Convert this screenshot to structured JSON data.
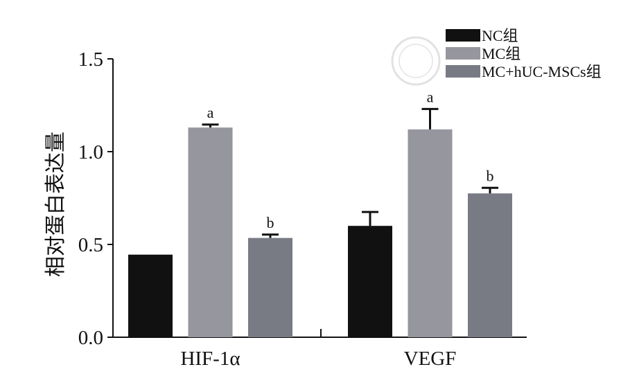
{
  "chart_data": {
    "type": "bar",
    "title": "",
    "xlabel": "",
    "ylabel": "相对蛋白表达量",
    "ylim": [
      0,
      1.5
    ],
    "yticks": [
      "0.0",
      "0.5",
      "1.0",
      "1.5"
    ],
    "ytick_values": [
      0,
      0.5,
      1.0,
      1.5
    ],
    "categories": [
      "HIF-1α",
      "VEGF"
    ],
    "legend_position": "top-right",
    "series": [
      {
        "name": "NC组",
        "color": "#111111",
        "values": [
          0.445,
          0.6
        ],
        "errors": [
          0.0,
          0.075
        ],
        "labels": [
          "",
          ""
        ]
      },
      {
        "name": "MC组",
        "color": "#96969e",
        "values": [
          1.13,
          1.12
        ],
        "errors": [
          0.016,
          0.11
        ],
        "labels": [
          "a",
          "a"
        ]
      },
      {
        "name": "MC+hUC-MSCs组",
        "color": "#787b83",
        "values": [
          0.535,
          0.775
        ],
        "errors": [
          0.018,
          0.03
        ],
        "labels": [
          "b",
          "b"
        ]
      }
    ]
  }
}
